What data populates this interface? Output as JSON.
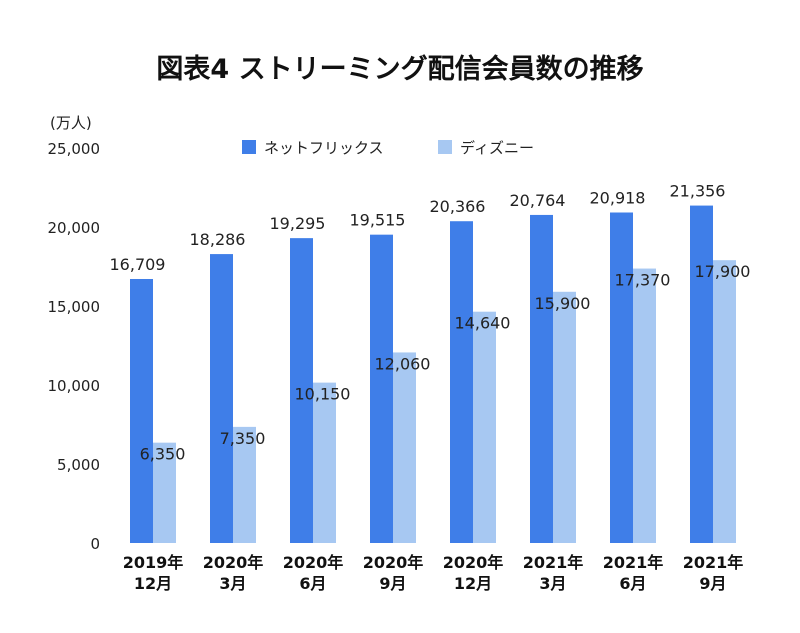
{
  "chart_data": {
    "type": "bar",
    "title": "図表4 ストリーミング配信会員数の推移",
    "y_unit_label": "(万人)",
    "ylim": [
      0,
      25000
    ],
    "y_ticks": [
      0,
      5000,
      10000,
      15000,
      20000,
      25000
    ],
    "y_tick_labels": [
      "0",
      "5,000",
      "10,000",
      "15,000",
      "20,000",
      "25,000"
    ],
    "grid": false,
    "legend_position": "top",
    "categories": [
      [
        "2019年",
        "12月"
      ],
      [
        "2020年",
        "3月"
      ],
      [
        "2020年",
        "6月"
      ],
      [
        "2020年",
        "9月"
      ],
      [
        "2020年",
        "12月"
      ],
      [
        "2021年",
        "3月"
      ],
      [
        "2021年",
        "6月"
      ],
      [
        "2021年",
        "9月"
      ]
    ],
    "series": [
      {
        "name": "ネットフリックス",
        "color": "#3f7ee8",
        "values": [
          16709,
          18286,
          19295,
          19515,
          20366,
          20764,
          20918,
          21356
        ],
        "labels": [
          "16,709",
          "18,286",
          "19,295",
          "19,515",
          "20,366",
          "20,764",
          "20,918",
          "21,356"
        ]
      },
      {
        "name": "ディズニー",
        "color": "#a7c8f2",
        "values": [
          6350,
          7350,
          10150,
          12060,
          14640,
          15900,
          17370,
          17900
        ],
        "labels": [
          "6,350",
          "7,350",
          "10,150",
          "12,060",
          "14,640",
          "15,900",
          "17,370",
          "17,900"
        ]
      }
    ]
  }
}
